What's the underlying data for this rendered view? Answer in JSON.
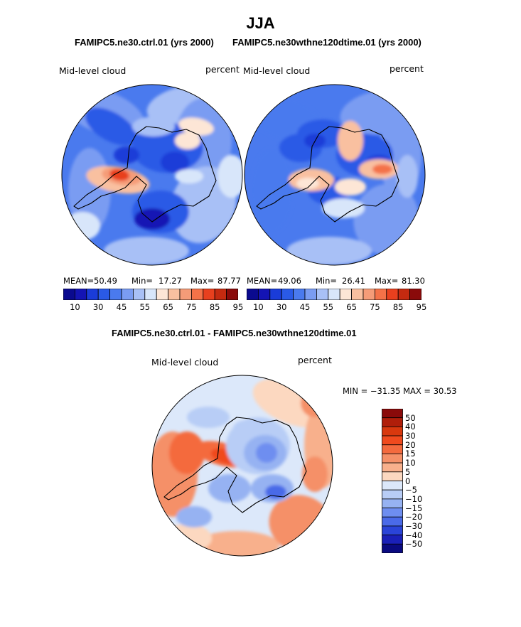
{
  "figure": {
    "title": "JJA",
    "diff_title": "FAMIPC5.ne30.ctrl.01 - FAMIPC5.ne30wthne120dtime.01"
  },
  "colors": {
    "abs_bar": [
      "#0a0a8f",
      "#1414b4",
      "#1a3cd8",
      "#2a5ae6",
      "#4a7aee",
      "#7a9cf2",
      "#a8c0f6",
      "#d8e6fa",
      "#fde6d6",
      "#f9c0a0",
      "#f59c78",
      "#f47248",
      "#e8401e",
      "#c42a10",
      "#8a0a0a"
    ],
    "diff_bar": [
      "#8a0a0a",
      "#b01e0a",
      "#d8380e",
      "#f04a1e",
      "#f46a3e",
      "#f59068",
      "#f8b08c",
      "#fcd8c0",
      "#dce8fa",
      "#b8cdf6",
      "#96b2f2",
      "#6e8ef0",
      "#4a6ae8",
      "#2a44d8",
      "#1a20b8",
      "#0a0a80"
    ]
  },
  "panels": [
    {
      "case": "FAMIPC5.ne30.ctrl.01 (yrs 2000)",
      "variable": "Mid-level cloud",
      "units": "percent",
      "mean_label": "MEAN=",
      "mean": "50.49",
      "min_label": "Min=",
      "min": "17.27",
      "max_label": "Max=",
      "max": "87.77",
      "tick_labels": [
        "10",
        "30",
        "45",
        "55",
        "65",
        "75",
        "85",
        "95"
      ]
    },
    {
      "case": "FAMIPC5.ne30wthne120dtime.01 (yrs 2000)",
      "variable": "Mid-level cloud",
      "units": "percent",
      "mean_label": "MEAN=",
      "mean": "49.06",
      "min_label": "Min=",
      "min": "26.41",
      "max_label": "Max=",
      "max": "81.30",
      "tick_labels": [
        "10",
        "30",
        "45",
        "55",
        "65",
        "75",
        "85",
        "95"
      ]
    },
    {
      "variable": "Mid-level cloud",
      "units": "percent",
      "minmax_label": "MIN = −31.35 MAX =  30.53",
      "tick_labels": [
        "50",
        "40",
        "30",
        "20",
        "15",
        "10",
        "5",
        "0",
        "−5",
        "−10",
        "−15",
        "−20",
        "−30",
        "−40",
        "−50"
      ]
    }
  ],
  "chart_data": [
    {
      "type": "heatmap",
      "projection": "south polar stereographic",
      "title": "FAMIPC5.ne30.ctrl.01 (yrs 2000)",
      "variable": "Mid-level cloud",
      "units": "percent",
      "mean": 50.49,
      "min": 17.27,
      "max": 87.77,
      "contour_levels": [
        10,
        20,
        30,
        40,
        45,
        50,
        55,
        60,
        65,
        70,
        75,
        80,
        85,
        90,
        95
      ]
    },
    {
      "type": "heatmap",
      "projection": "south polar stereographic",
      "title": "FAMIPC5.ne30wthne120dtime.01 (yrs 2000)",
      "variable": "Mid-level cloud",
      "units": "percent",
      "mean": 49.06,
      "min": 26.41,
      "max": 81.3,
      "contour_levels": [
        10,
        20,
        30,
        40,
        45,
        50,
        55,
        60,
        65,
        70,
        75,
        80,
        85,
        90,
        95
      ]
    },
    {
      "type": "heatmap",
      "projection": "south polar stereographic",
      "title": "FAMIPC5.ne30.ctrl.01 - FAMIPC5.ne30wthne120dtime.01",
      "variable": "Mid-level cloud",
      "units": "percent",
      "min": -31.35,
      "max": 30.53,
      "contour_levels": [
        -50,
        -40,
        -30,
        -20,
        -15,
        -10,
        -5,
        0,
        5,
        10,
        15,
        20,
        30,
        40,
        50
      ]
    }
  ]
}
